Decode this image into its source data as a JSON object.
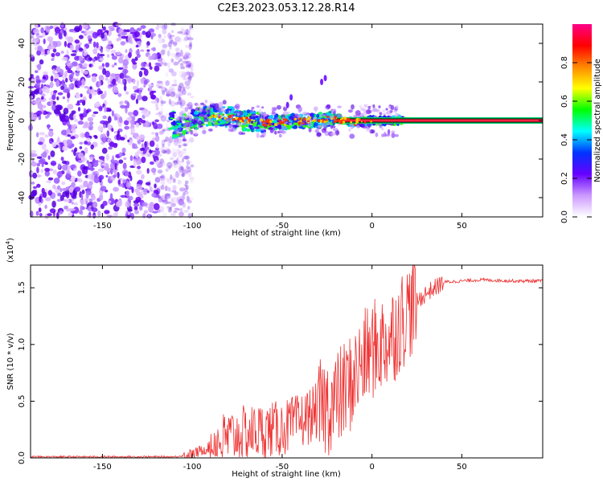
{
  "title": "C2E3.2023.053.12.28.R14",
  "chart_data": [
    {
      "type": "heatmap",
      "xlabel": "Height of straight line (km)",
      "ylabel": "Frequency (Hz)",
      "xlim": [
        -190,
        95
      ],
      "ylim": [
        -50,
        50
      ],
      "x_ticks": [
        -150,
        -100,
        -50,
        0,
        50
      ],
      "y_ticks": [
        -40,
        -20,
        0,
        20,
        40
      ],
      "colorbar": {
        "label": "Normalized spectral amplitude",
        "range": [
          0,
          1
        ],
        "ticks": [
          "0.0",
          "0.2",
          "0.4",
          "0.6",
          "0.8"
        ],
        "colors": [
          "#ffffff",
          "#cc99ff",
          "#6600ff",
          "#0033ff",
          "#00ffff",
          "#00ff00",
          "#ffff00",
          "#ff8800",
          "#ff0000",
          "#ff0088"
        ]
      },
      "noise_region": {
        "x_range": [
          -190,
          -110
        ],
        "freq_range": [
          -50,
          50
        ]
      },
      "signal_trace": {
        "x": [
          -110,
          -100,
          -90,
          -80,
          -70,
          -60,
          -50,
          -40,
          -30,
          -20,
          -10,
          0,
          10,
          20,
          95
        ],
        "freq": [
          -5,
          0,
          3,
          2,
          0,
          -1,
          -1,
          0,
          0,
          1,
          -1,
          0,
          0,
          0,
          0
        ]
      },
      "grid": false
    },
    {
      "type": "line",
      "xlabel": "Height of straight line (km)",
      "ylabel": "SNR (10 * v/v)",
      "multiplier": "(x10^4)",
      "multiplier_base": "(x10",
      "multiplier_exp": "4",
      "multiplier_close": ")",
      "xlim": [
        -190,
        95
      ],
      "ylim": [
        0,
        1.7
      ],
      "x_ticks": [
        -150,
        -100,
        -50,
        0,
        50
      ],
      "y_ticks": [
        "0.0",
        "0.5",
        "1.0",
        "1.5"
      ],
      "line_color": "#ee3333",
      "series": [
        {
          "x": [
            -190,
            -150,
            -110,
            -100,
            -90,
            -80,
            -70,
            -60,
            -50,
            -40,
            -30,
            -20,
            -10,
            -5,
            0,
            10,
            20,
            30,
            40,
            60,
            80,
            95
          ],
          "values": [
            0.01,
            0.01,
            0.01,
            0.03,
            0.1,
            0.18,
            0.22,
            0.24,
            0.26,
            0.32,
            0.42,
            0.5,
            0.7,
            0.85,
            0.95,
            1.05,
            1.3,
            1.45,
            1.55,
            1.57,
            1.56,
            1.56
          ]
        }
      ],
      "grid": false
    }
  ]
}
